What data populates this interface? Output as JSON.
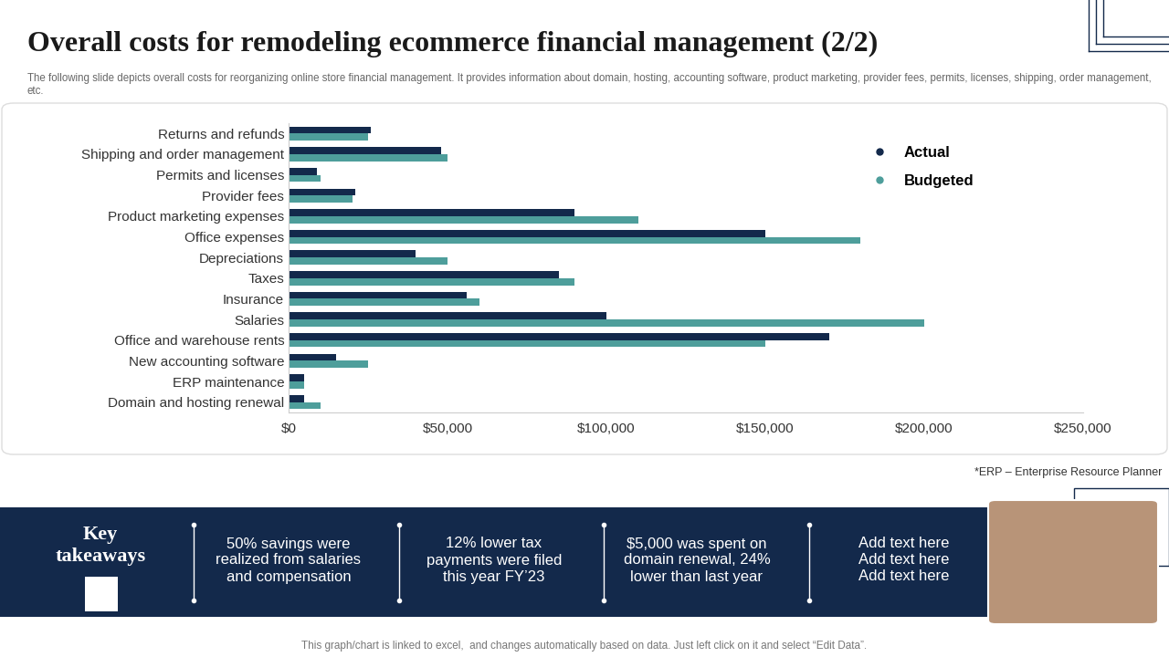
{
  "header": {
    "title": "Overall costs for remodeling ecommerce financial management (2/2)",
    "subtitle": "The following slide depicts overall costs for reorganizing online store financial management. It provides information about domain, hosting, accounting software, product marketing, provider fees, permits, licenses, shipping, order management, etc."
  },
  "chart_data": {
    "type": "bar",
    "orientation": "horizontal",
    "grid": false,
    "legend": "upper right",
    "categories": [
      "Returns and refunds",
      "Shipping and order management",
      "Permits and licenses",
      "Provider fees",
      "Product marketing expenses",
      "Office expenses",
      "Depreciations",
      "Taxes",
      "Insurance",
      "Salaries",
      "Office and warehouse rents",
      "New accounting software",
      "ERP maintenance",
      "Domain and hosting renewal"
    ],
    "series": [
      {
        "name": "Actual",
        "color": "#13294b",
        "values": [
          26000,
          48000,
          9000,
          21000,
          90000,
          150000,
          40000,
          85000,
          56000,
          100000,
          170000,
          15000,
          5000,
          5000
        ]
      },
      {
        "name": "Budgeted",
        "color": "#4e9e9b",
        "values": [
          25000,
          50000,
          10000,
          20000,
          110000,
          180000,
          50000,
          90000,
          60000,
          200000,
          150000,
          25000,
          5000,
          10000
        ]
      }
    ],
    "xlim": [
      0,
      250000
    ],
    "xticks": [
      {
        "value": 0,
        "label": "$0"
      },
      {
        "value": 50000,
        "label": "$50,000"
      },
      {
        "value": 100000,
        "label": "$100,000"
      },
      {
        "value": 150000,
        "label": "$150,000"
      },
      {
        "value": 200000,
        "label": "$200,000"
      },
      {
        "value": 250000,
        "label": "$250,000"
      }
    ]
  },
  "footnote": "*ERP – Enterprise Resource Planner",
  "key_takeaways": {
    "heading": "Key\ntakeaways",
    "items": [
      [
        "50% savings were",
        "realized from salaries",
        "and compensation"
      ],
      [
        "12% lower tax",
        "payments were filed",
        "this year FY’23"
      ],
      [
        "$5,000 was spent on",
        "domain renewal, 24%",
        "lower than last year"
      ],
      [
        "Add text here",
        "Add text here",
        "Add text here"
      ]
    ]
  },
  "footer": "This graph/chart is linked to excel,  and changes automatically based on data. Just left click on it and select “Edit Data”."
}
